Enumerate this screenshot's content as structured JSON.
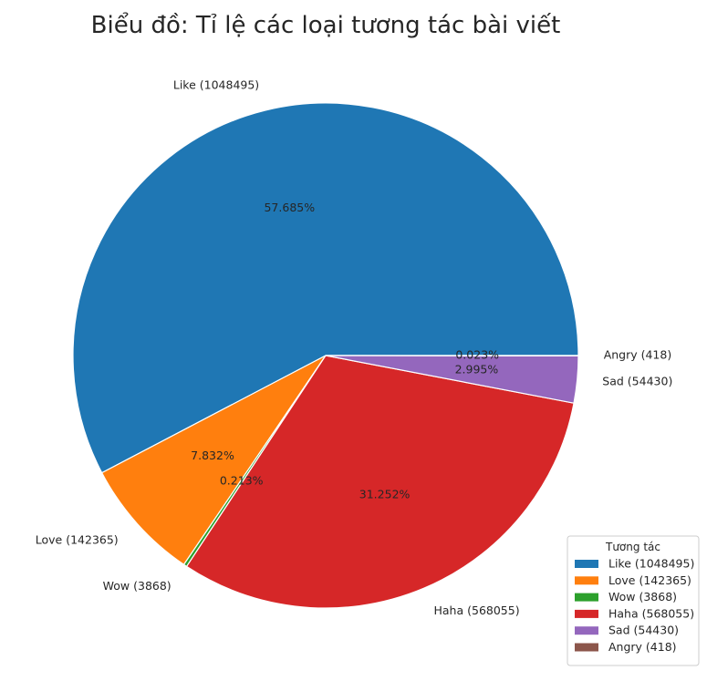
{
  "chart_data": {
    "type": "pie",
    "title": "Biểu đồ: Tỉ lệ các loại tương tác bài viết",
    "start_angle_deg": 0,
    "direction": "counterclockwise",
    "categories": [
      "Like",
      "Love",
      "Wow",
      "Haha",
      "Sad",
      "Angry"
    ],
    "values": [
      1048495,
      142365,
      3868,
      568055,
      54430,
      418
    ],
    "slice_labels": [
      "Like (1048495)",
      "Love (142365)",
      "Wow (3868)",
      "Haha (568055)",
      "Sad (54430)",
      "Angry (418)"
    ],
    "percent_labels": [
      "57.685%",
      "7.832%",
      "0.213%",
      "31.252%",
      "2.995%",
      "0.023%"
    ],
    "colors": [
      "#1f77b4",
      "#ff7f0e",
      "#2ca02c",
      "#d62728",
      "#9467bd",
      "#8c564b"
    ],
    "legend": {
      "title": "Tương tác",
      "placement": "lower-right",
      "entries": [
        "Like (1048495)",
        "Love (142365)",
        "Wow (3868)",
        "Haha (568055)",
        "Sad (54430)",
        "Angry (418)"
      ]
    }
  }
}
